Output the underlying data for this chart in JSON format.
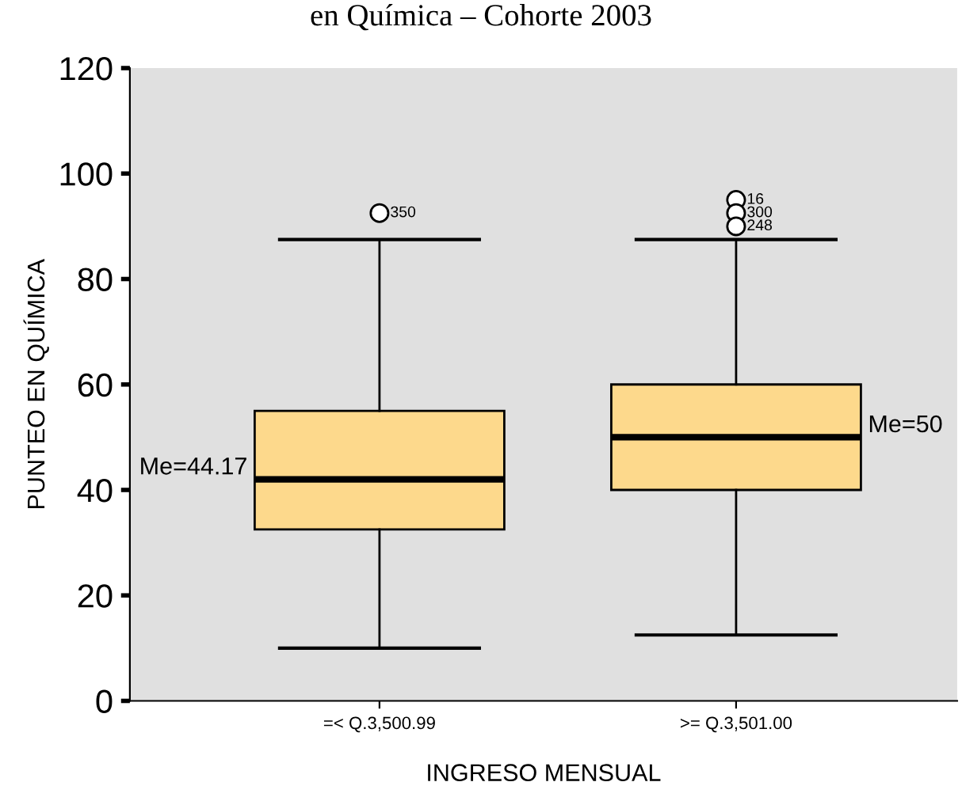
{
  "chart_data": {
    "type": "box",
    "title": "en Química – Cohorte 2003",
    "xlabel": "INGRESO MENSUAL",
    "ylabel": "PUNTEO EN QUÍMICA",
    "categories": [
      "=< Q.3,500.99",
      ">= Q.3,501.00"
    ],
    "series": [
      {
        "color": "#fdd98c",
        "boxes": [
          {
            "low": 10,
            "q1": 32.5,
            "median": 42,
            "q3": 55,
            "high": 87.5,
            "outliers": [
              92.5
            ]
          },
          {
            "low": 12.5,
            "q1": 40,
            "median": 50,
            "q3": 60,
            "high": 87.5,
            "outliers": [
              95,
              92.5,
              90
            ]
          }
        ]
      }
    ],
    "ylim": [
      0,
      120
    ],
    "yticks": [
      0,
      20,
      40,
      60,
      80,
      100,
      120
    ],
    "grid": false,
    "legend": false,
    "annotations": [
      "Me=44.17",
      "Me=50",
      "350",
      "16",
      "300",
      "248"
    ]
  }
}
